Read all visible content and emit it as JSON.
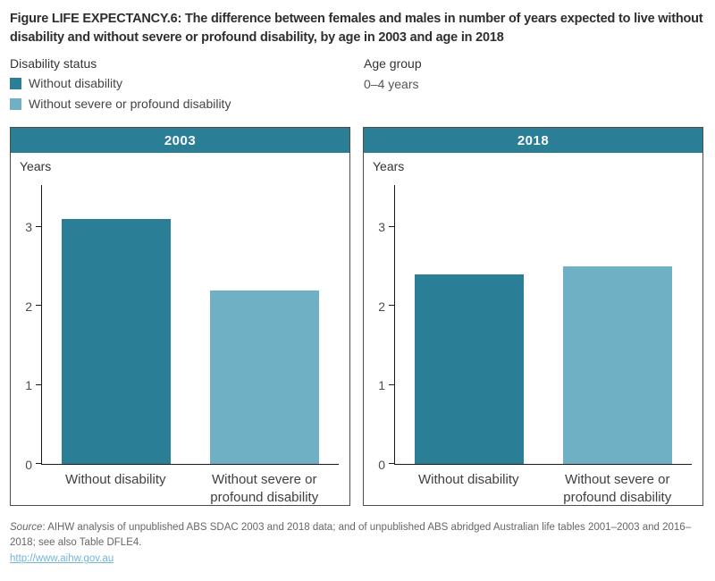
{
  "figure": {
    "title": "Figure LIFE EXPECTANCY.6: The difference between females and males in number of years expected to live without disability and without severe or profound disability, by age in 2003 and age in 2018"
  },
  "colors": {
    "accent_dark": "#2a7e96",
    "accent_light": "#70b0c4",
    "link": "#76b4d9"
  },
  "legend": {
    "header": "Disability status",
    "items": [
      {
        "label": "Without disability",
        "color": "#2a7e96"
      },
      {
        "label": "Without severe or profound disability",
        "color": "#70b0c4"
      }
    ]
  },
  "age_group": {
    "header": "Age group",
    "value": "0–4 years"
  },
  "chart_data": [
    {
      "type": "bar",
      "title": "2003",
      "ylabel": "Years",
      "categories": [
        "Without disability",
        "Without severe or profound disability"
      ],
      "values": [
        3.1,
        2.2
      ],
      "colors": [
        "#2a7e96",
        "#70b0c4"
      ],
      "yticks": [
        0,
        1,
        2,
        3
      ],
      "ylim": [
        0,
        3.53
      ],
      "grid": false,
      "legend_position": "top-left-of-figure"
    },
    {
      "type": "bar",
      "title": "2018",
      "ylabel": "Years",
      "categories": [
        "Without disability",
        "Without severe or profound disability"
      ],
      "values": [
        2.4,
        2.5
      ],
      "colors": [
        "#2a7e96",
        "#70b0c4"
      ],
      "yticks": [
        0,
        1,
        2,
        3
      ],
      "ylim": [
        0,
        3.53
      ],
      "grid": false,
      "legend_position": "top-left-of-figure"
    }
  ],
  "footer": {
    "source_prefix": "Source",
    "source_text": ": AIHW analysis of unpublished ABS SDAC 2003 and 2018 data; and of unpublished ABS abridged Australian life tables 2001–2003 and 2016–2018; see also Table DFLE4.",
    "link": "http://www.aihw.gov.au"
  }
}
